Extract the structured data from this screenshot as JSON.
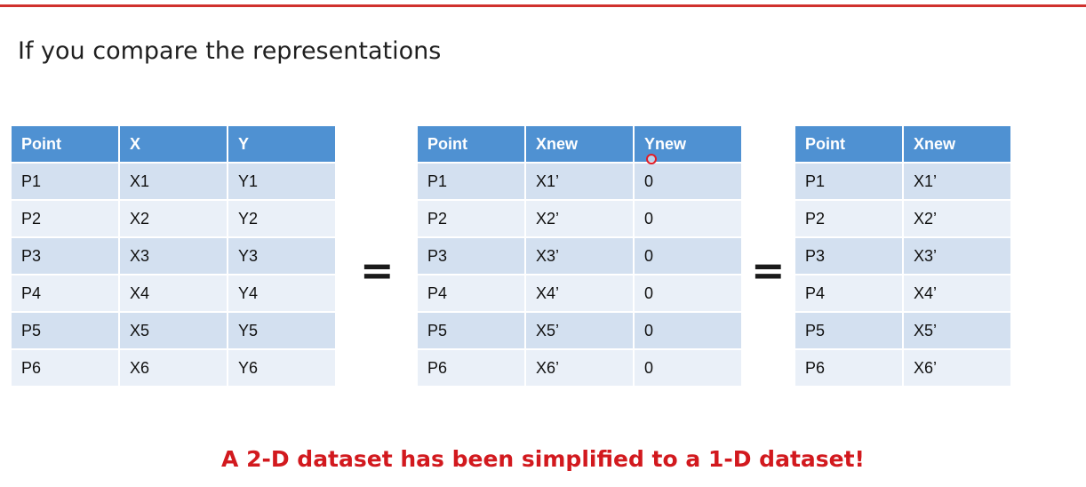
{
  "slide": {
    "heading": "If you compare the representations",
    "equals_sign": "=",
    "caption": "A 2-D dataset has been simplified to a 1-D dataset!",
    "accent_color": "#d0312d",
    "header_color": "#4f91d2"
  },
  "tables": [
    {
      "headers": [
        "Point",
        "X",
        "Y"
      ],
      "rows": [
        [
          "P1",
          "X1",
          "Y1"
        ],
        [
          "P2",
          "X2",
          "Y2"
        ],
        [
          "P3",
          "X3",
          "Y3"
        ],
        [
          "P4",
          "X4",
          "Y4"
        ],
        [
          "P5",
          "X5",
          "Y5"
        ],
        [
          "P6",
          "X6",
          "Y6"
        ]
      ]
    },
    {
      "headers": [
        "Point",
        "Xnew",
        "Ynew"
      ],
      "rows": [
        [
          "P1",
          "X1’",
          "0"
        ],
        [
          "P2",
          "X2’",
          "0"
        ],
        [
          "P3",
          "X3’",
          "0"
        ],
        [
          "P4",
          "X4’",
          "0"
        ],
        [
          "P5",
          "X5’",
          "0"
        ],
        [
          "P6",
          "X6’",
          "0"
        ]
      ]
    },
    {
      "headers": [
        "Point",
        "Xnew"
      ],
      "rows": [
        [
          "P1",
          "X1’"
        ],
        [
          "P2",
          "X2’"
        ],
        [
          "P3",
          "X3’"
        ],
        [
          "P4",
          "X4’"
        ],
        [
          "P5",
          "X5’"
        ],
        [
          "P6",
          "X6’"
        ]
      ]
    }
  ]
}
